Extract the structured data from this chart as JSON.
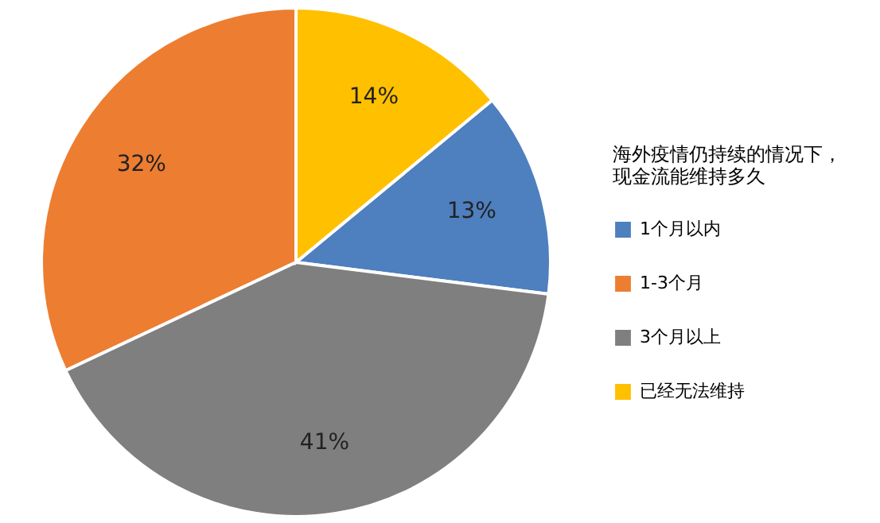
{
  "chart_data": {
    "type": "pie",
    "legend_title": "海外疫情仍持续的情况下，现金流能维持多久",
    "categories": [
      "1个月以内",
      "1-3个月",
      "3个月以上",
      "已经无法维持"
    ],
    "values": [
      13,
      32,
      41,
      14
    ],
    "colors": [
      "#4e7fbf",
      "#ed7d31",
      "#7f7f7f",
      "#ffc000"
    ],
    "value_labels": [
      "13%",
      "32%",
      "41%",
      "14%"
    ],
    "legend": "right"
  }
}
